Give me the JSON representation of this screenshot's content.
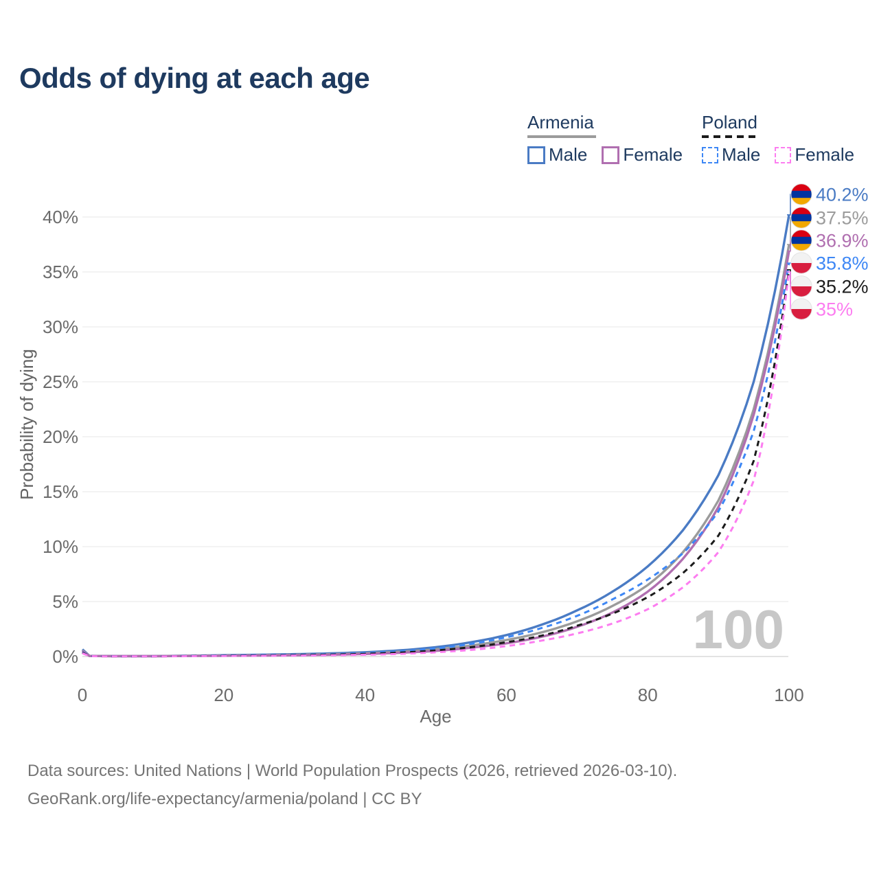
{
  "title": "Odds of dying at each age",
  "legend": {
    "groups": [
      {
        "id": "armenia",
        "title": "Armenia",
        "style": "solid",
        "underline_color": "#9b9b9b",
        "items": [
          {
            "label": "Male",
            "color": "#4a7bc4"
          },
          {
            "label": "Female",
            "color": "#b06fb0"
          }
        ]
      },
      {
        "id": "poland",
        "title": "Poland",
        "style": "dashed",
        "underline_color": "#1b1b1b",
        "items": [
          {
            "label": "Male",
            "color": "#3d87f5"
          },
          {
            "label": "Female",
            "color": "#fc7df0"
          }
        ]
      }
    ]
  },
  "chart_data": {
    "type": "line",
    "title": "Odds of dying at each age",
    "xlabel": "Age",
    "ylabel": "Probability of dying",
    "xlim": [
      0,
      100
    ],
    "ylim": [
      0,
      40
    ],
    "x_ticks": [
      0,
      20,
      40,
      60,
      80,
      100
    ],
    "y_ticks": [
      0,
      5,
      10,
      15,
      20,
      25,
      30,
      35,
      40
    ],
    "y_tick_suffix": "%",
    "grid": "horizontal",
    "legend_position": "top-right",
    "frame_label": "100",
    "series": [
      {
        "name": "Armenia Male",
        "country": "Armenia",
        "sex": "Male",
        "color": "#4a7bc4",
        "dash": false,
        "flag": "armenia",
        "end_label": "40.2%",
        "points": [
          [
            0,
            0.65
          ],
          [
            1,
            0.055
          ],
          [
            5,
            0.04
          ],
          [
            10,
            0.04
          ],
          [
            15,
            0.07
          ],
          [
            20,
            0.12
          ],
          [
            25,
            0.16
          ],
          [
            30,
            0.21
          ],
          [
            35,
            0.28
          ],
          [
            40,
            0.39
          ],
          [
            45,
            0.56
          ],
          [
            50,
            0.85
          ],
          [
            55,
            1.3
          ],
          [
            60,
            1.95
          ],
          [
            65,
            2.9
          ],
          [
            70,
            4.2
          ],
          [
            75,
            5.9
          ],
          [
            80,
            8.2
          ],
          [
            85,
            11.5
          ],
          [
            90,
            16.5
          ],
          [
            95,
            25.0
          ],
          [
            100,
            40.2
          ]
        ]
      },
      {
        "name": "Armenia",
        "country": "Armenia",
        "sex": "All",
        "color": "#9b9b9b",
        "dash": false,
        "flag": "armenia",
        "end_label": "37.5%",
        "points": [
          [
            0,
            0.55
          ],
          [
            1,
            0.05
          ],
          [
            5,
            0.035
          ],
          [
            10,
            0.035
          ],
          [
            15,
            0.06
          ],
          [
            20,
            0.09
          ],
          [
            25,
            0.12
          ],
          [
            30,
            0.16
          ],
          [
            35,
            0.21
          ],
          [
            40,
            0.3
          ],
          [
            45,
            0.44
          ],
          [
            50,
            0.65
          ],
          [
            55,
            1.0
          ],
          [
            60,
            1.5
          ],
          [
            65,
            2.2
          ],
          [
            70,
            3.2
          ],
          [
            75,
            4.6
          ],
          [
            80,
            6.5
          ],
          [
            85,
            9.5
          ],
          [
            90,
            14.2
          ],
          [
            95,
            22.5
          ],
          [
            100,
            37.5
          ]
        ]
      },
      {
        "name": "Armenia Female",
        "country": "Armenia",
        "sex": "Female",
        "color": "#b06fb0",
        "dash": false,
        "flag": "armenia",
        "end_label": "36.9%",
        "points": [
          [
            0,
            0.5
          ],
          [
            1,
            0.045
          ],
          [
            5,
            0.03
          ],
          [
            10,
            0.03
          ],
          [
            15,
            0.05
          ],
          [
            20,
            0.07
          ],
          [
            25,
            0.09
          ],
          [
            30,
            0.12
          ],
          [
            35,
            0.16
          ],
          [
            40,
            0.23
          ],
          [
            45,
            0.34
          ],
          [
            50,
            0.51
          ],
          [
            55,
            0.8
          ],
          [
            60,
            1.2
          ],
          [
            65,
            1.8
          ],
          [
            70,
            2.7
          ],
          [
            75,
            4.0
          ],
          [
            80,
            5.9
          ],
          [
            85,
            8.9
          ],
          [
            90,
            13.6
          ],
          [
            95,
            22.0
          ],
          [
            100,
            36.9
          ]
        ]
      },
      {
        "name": "Poland Male",
        "country": "Poland",
        "sex": "Male",
        "color": "#3d87f5",
        "dash": true,
        "flag": "poland",
        "end_label": "35.8%",
        "points": [
          [
            0,
            0.4
          ],
          [
            1,
            0.04
          ],
          [
            5,
            0.02
          ],
          [
            10,
            0.02
          ],
          [
            15,
            0.05
          ],
          [
            20,
            0.1
          ],
          [
            25,
            0.13
          ],
          [
            30,
            0.16
          ],
          [
            35,
            0.22
          ],
          [
            40,
            0.31
          ],
          [
            45,
            0.47
          ],
          [
            50,
            0.74
          ],
          [
            55,
            1.15
          ],
          [
            60,
            1.75
          ],
          [
            65,
            2.6
          ],
          [
            70,
            3.7
          ],
          [
            75,
            5.2
          ],
          [
            80,
            7.0
          ],
          [
            85,
            9.4
          ],
          [
            90,
            13.2
          ],
          [
            95,
            20.5
          ],
          [
            100,
            35.8
          ]
        ]
      },
      {
        "name": "Poland",
        "country": "Poland",
        "sex": "All",
        "color": "#1b1b1b",
        "dash": true,
        "flag": "poland",
        "end_label": "35.2%",
        "points": [
          [
            0,
            0.35
          ],
          [
            1,
            0.035
          ],
          [
            5,
            0.018
          ],
          [
            10,
            0.018
          ],
          [
            15,
            0.04
          ],
          [
            20,
            0.07
          ],
          [
            25,
            0.09
          ],
          [
            30,
            0.12
          ],
          [
            35,
            0.17
          ],
          [
            40,
            0.24
          ],
          [
            45,
            0.36
          ],
          [
            50,
            0.55
          ],
          [
            55,
            0.85
          ],
          [
            60,
            1.3
          ],
          [
            65,
            1.9
          ],
          [
            70,
            2.8
          ],
          [
            75,
            3.9
          ],
          [
            80,
            5.4
          ],
          [
            85,
            7.6
          ],
          [
            90,
            11.0
          ],
          [
            95,
            17.8
          ],
          [
            100,
            35.2
          ]
        ]
      },
      {
        "name": "Poland Female",
        "country": "Poland",
        "sex": "Female",
        "color": "#fc7df0",
        "dash": true,
        "flag": "poland",
        "end_label": "35%",
        "points": [
          [
            0,
            0.3
          ],
          [
            1,
            0.03
          ],
          [
            5,
            0.015
          ],
          [
            10,
            0.015
          ],
          [
            15,
            0.03
          ],
          [
            20,
            0.05
          ],
          [
            25,
            0.06
          ],
          [
            30,
            0.08
          ],
          [
            35,
            0.11
          ],
          [
            40,
            0.16
          ],
          [
            45,
            0.24
          ],
          [
            50,
            0.38
          ],
          [
            55,
            0.6
          ],
          [
            60,
            0.95
          ],
          [
            65,
            1.45
          ],
          [
            70,
            2.1
          ],
          [
            75,
            3.0
          ],
          [
            80,
            4.3
          ],
          [
            85,
            6.3
          ],
          [
            90,
            9.5
          ],
          [
            95,
            16.0
          ],
          [
            100,
            35.0
          ]
        ]
      }
    ],
    "flag_colors": {
      "armenia": [
        "#d90012",
        "#0033a0",
        "#f2a800"
      ],
      "poland": [
        "#f2f2f2",
        "#d81e3f"
      ]
    }
  },
  "footer": {
    "line1": "Data sources: United Nations | World Population Prospects (2026, retrieved 2026-03-10).",
    "line2": "GeoRank.org/life-expectancy/armenia/poland | CC BY"
  }
}
